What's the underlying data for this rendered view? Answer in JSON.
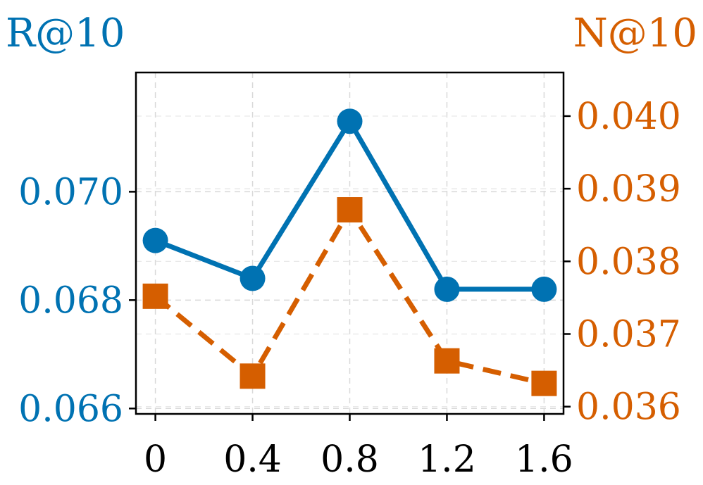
{
  "chart_data": {
    "type": "line",
    "x": [
      0,
      0.4,
      0.8,
      1.2,
      1.6
    ],
    "x_tick_labels": [
      "0",
      "0.4",
      "0.8",
      "1.2",
      "1.6"
    ],
    "left_axis": {
      "title": "R@10",
      "color": "#0072B2",
      "ylim": [
        0.0659,
        0.0722
      ],
      "ticks": [
        0.066,
        0.068,
        0.07
      ],
      "tick_labels": [
        "0.066",
        "0.068",
        "0.070"
      ]
    },
    "right_axis": {
      "title": "N@10",
      "color": "#D55E00",
      "ylim": [
        0.0359,
        0.0406
      ],
      "ticks": [
        0.036,
        0.037,
        0.038,
        0.039,
        0.04
      ],
      "tick_labels": [
        "0.036",
        "0.037",
        "0.038",
        "0.039",
        "0.040"
      ]
    },
    "series": [
      {
        "axis": "left",
        "color": "#0072B2",
        "line_style": "solid",
        "marker": "circle",
        "values": [
          0.0691,
          0.0684,
          0.0713,
          0.0682,
          0.0682
        ]
      },
      {
        "axis": "right",
        "color": "#D55E00",
        "line_style": "dashed",
        "marker": "square",
        "values": [
          0.03752,
          0.03642,
          0.03871,
          0.03663,
          0.03632
        ]
      }
    ],
    "grid": true,
    "grid_style": "dashed-light-gray"
  }
}
